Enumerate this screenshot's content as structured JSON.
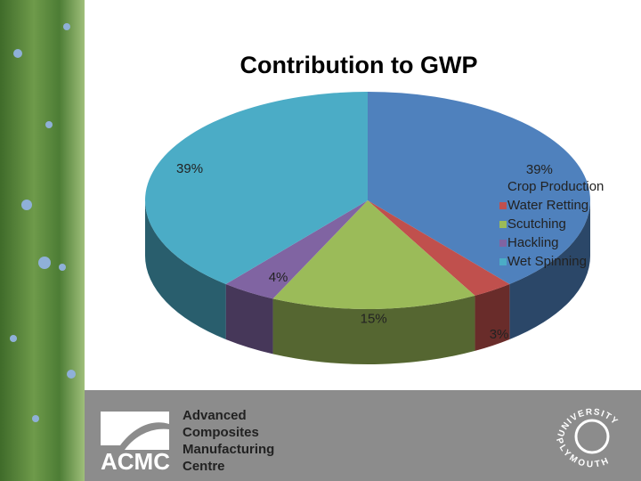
{
  "chart_data": {
    "type": "pie",
    "title": "Contribution to GWP",
    "categories": [
      "Crop Production",
      "Water Retting",
      "Scutching",
      "Hackling",
      "Wet Spinning"
    ],
    "values": [
      39,
      3,
      15,
      4,
      39
    ],
    "value_labels": [
      "39%",
      "3%",
      "15%",
      "4%",
      "39%"
    ],
    "colors": [
      "#4f81bd",
      "#c0504d",
      "#9bbb59",
      "#8064a2",
      "#4bacc6"
    ],
    "legend": "right"
  },
  "footer": {
    "logo": "ACMC",
    "lines": [
      "Advanced",
      "Composites",
      "Manufacturing",
      "Centre"
    ],
    "university": [
      "UNIVERSITY",
      "PLYMOUTH"
    ]
  }
}
